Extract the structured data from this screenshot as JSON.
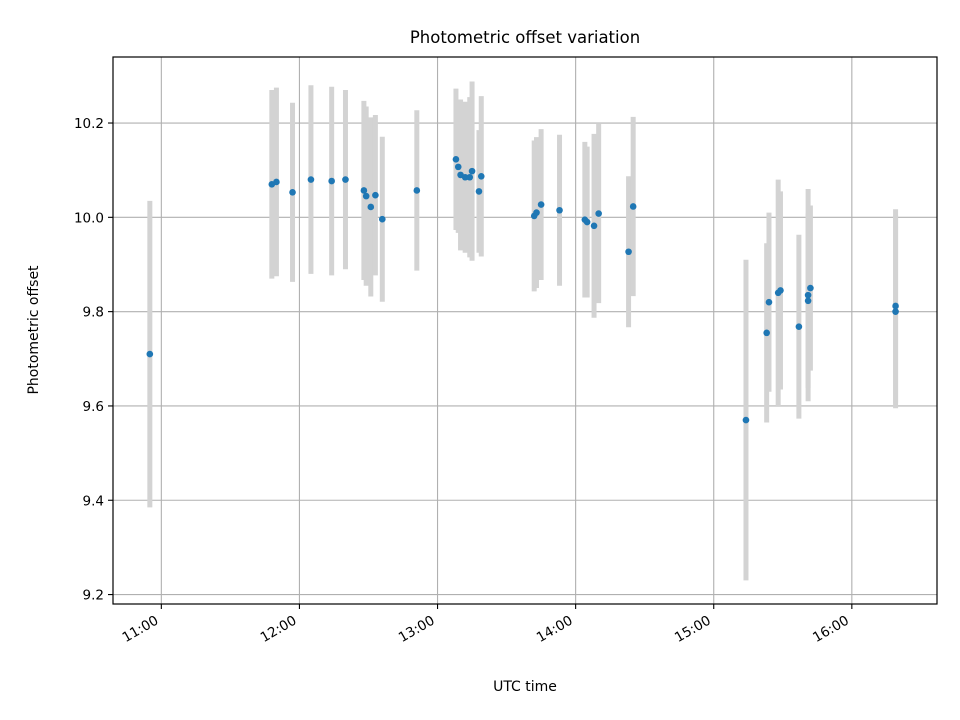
{
  "chart_data": {
    "type": "scatter",
    "title": "Photometric offset variation",
    "xlabel": "UTC time",
    "ylabel": "Photometric offset",
    "xlim": [
      "10:39",
      "16:37"
    ],
    "ylim": [
      9.18,
      10.34
    ],
    "x_ticks": [
      "11:00",
      "12:00",
      "13:00",
      "14:00",
      "15:00",
      "16:00"
    ],
    "y_ticks": [
      "9.2",
      "9.4",
      "9.6",
      "9.8",
      "10.0",
      "10.2"
    ],
    "grid": true,
    "colors": {
      "point": "#1f77b4",
      "errorbar": "#d3d3d3",
      "grid": "#b0b0b0"
    },
    "points": [
      {
        "x": "10:55",
        "y": 9.71,
        "yerr": 0.325
      },
      {
        "x": "11:48",
        "y": 10.07,
        "yerr": 0.2
      },
      {
        "x": "11:50",
        "y": 10.075,
        "yerr": 0.2
      },
      {
        "x": "11:57",
        "y": 10.053,
        "yerr": 0.19
      },
      {
        "x": "12:05",
        "y": 10.08,
        "yerr": 0.2
      },
      {
        "x": "12:14",
        "y": 10.077,
        "yerr": 0.2
      },
      {
        "x": "12:20",
        "y": 10.08,
        "yerr": 0.19
      },
      {
        "x": "12:28",
        "y": 10.057,
        "yerr": 0.19
      },
      {
        "x": "12:29",
        "y": 10.045,
        "yerr": 0.19
      },
      {
        "x": "12:31",
        "y": 10.022,
        "yerr": 0.19
      },
      {
        "x": "12:33",
        "y": 10.047,
        "yerr": 0.17
      },
      {
        "x": "12:36",
        "y": 9.996,
        "yerr": 0.175
      },
      {
        "x": "12:51",
        "y": 10.057,
        "yerr": 0.17
      },
      {
        "x": "13:08",
        "y": 10.123,
        "yerr": 0.15
      },
      {
        "x": "13:09",
        "y": 10.107,
        "yerr": 0.14
      },
      {
        "x": "13:10",
        "y": 10.09,
        "yerr": 0.16
      },
      {
        "x": "13:12",
        "y": 10.085,
        "yerr": 0.16
      },
      {
        "x": "13:14",
        "y": 10.085,
        "yerr": 0.17
      },
      {
        "x": "13:15",
        "y": 10.098,
        "yerr": 0.19
      },
      {
        "x": "13:18",
        "y": 10.055,
        "yerr": 0.13
      },
      {
        "x": "13:19",
        "y": 10.087,
        "yerr": 0.17
      },
      {
        "x": "13:42",
        "y": 10.003,
        "yerr": 0.16
      },
      {
        "x": "13:43",
        "y": 10.01,
        "yerr": 0.16
      },
      {
        "x": "13:45",
        "y": 10.027,
        "yerr": 0.16
      },
      {
        "x": "13:53",
        "y": 10.015,
        "yerr": 0.16
      },
      {
        "x": "14:04",
        "y": 9.995,
        "yerr": 0.165
      },
      {
        "x": "14:05",
        "y": 9.99,
        "yerr": 0.16
      },
      {
        "x": "14:08",
        "y": 9.982,
        "yerr": 0.195
      },
      {
        "x": "14:10",
        "y": 10.008,
        "yerr": 0.19
      },
      {
        "x": "14:23",
        "y": 9.927,
        "yerr": 0.16
      },
      {
        "x": "14:25",
        "y": 10.023,
        "yerr": 0.19
      },
      {
        "x": "15:14",
        "y": 9.57,
        "yerr": 0.34
      },
      {
        "x": "15:23",
        "y": 9.755,
        "yerr": 0.19
      },
      {
        "x": "15:24",
        "y": 9.82,
        "yerr": 0.19
      },
      {
        "x": "15:28",
        "y": 9.84,
        "yerr": 0.24
      },
      {
        "x": "15:29",
        "y": 9.845,
        "yerr": 0.21
      },
      {
        "x": "15:37",
        "y": 9.768,
        "yerr": 0.195
      },
      {
        "x": "15:41",
        "y": 9.835,
        "yerr": 0.225
      },
      {
        "x": "15:41",
        "y": 9.823,
        "yerr": 0.185
      },
      {
        "x": "15:42",
        "y": 9.85,
        "yerr": 0.175
      },
      {
        "x": "16:19",
        "y": 9.812,
        "yerr": 0.205
      },
      {
        "x": "16:19",
        "y": 9.8,
        "yerr": 0.205
      }
    ]
  }
}
